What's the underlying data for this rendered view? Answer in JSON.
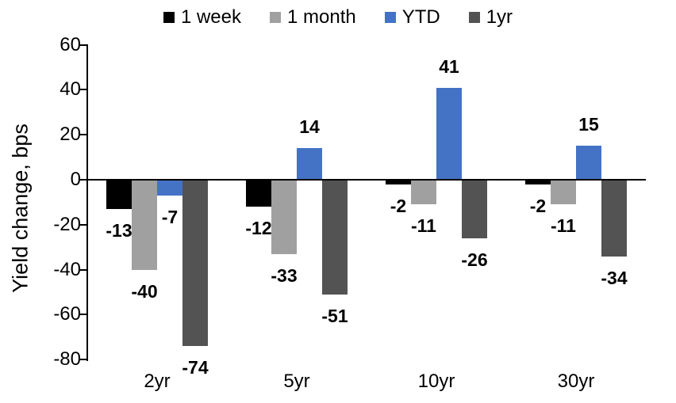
{
  "chart_data": {
    "type": "bar",
    "title": "",
    "xlabel": "",
    "ylabel": "Yield change, bps",
    "categories": [
      "2yr",
      "5yr",
      "10yr",
      "30yr"
    ],
    "series": [
      {
        "name": "1 week",
        "color": "#000000",
        "values": [
          -13,
          -12,
          -2,
          -2
        ]
      },
      {
        "name": "1 month",
        "color": "#A0A0A0",
        "values": [
          -40,
          -33,
          -11,
          -11
        ]
      },
      {
        "name": "YTD",
        "color": "#4472C4",
        "values": [
          -7,
          14,
          41,
          15
        ]
      },
      {
        "name": "1yr",
        "color": "#535353",
        "values": [
          -74,
          -51,
          -26,
          -34
        ]
      }
    ],
    "ylim": [
      -80,
      60
    ],
    "yticks": [
      60,
      40,
      20,
      0,
      -20,
      -40,
      -60,
      -80
    ],
    "data_labels": true,
    "grid": false,
    "legend_position": "top",
    "axis_color": "#000000",
    "background_color": "#FFFFFF"
  }
}
